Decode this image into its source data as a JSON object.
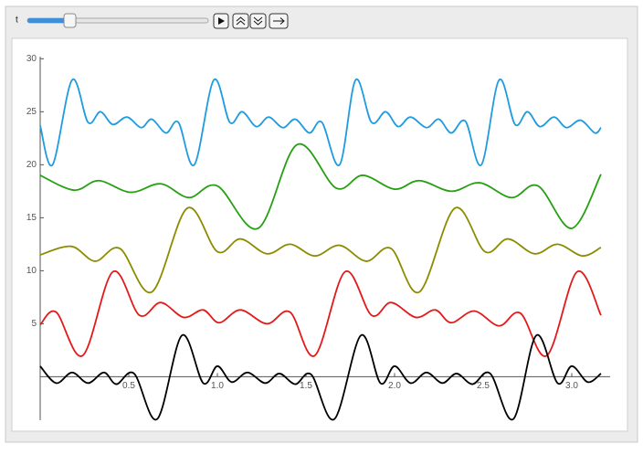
{
  "controls": {
    "label": "t"
  },
  "chart_data": {
    "type": "line",
    "xlim": [
      0,
      3.165
    ],
    "ylim": [
      -4.1,
      30.2
    ],
    "xticks": [
      0.5,
      {
        "value": 1.0,
        "label": "1.0"
      },
      1.5,
      {
        "value": 2.0,
        "label": "2.0"
      },
      2.5,
      {
        "value": 3.0,
        "label": "3.0"
      }
    ],
    "yticks": [
      5,
      10,
      15,
      20,
      25,
      30
    ],
    "series": [
      {
        "color": "#1f9be0",
        "x": [
          0,
          0.07,
          0.18,
          0.27,
          0.34,
          0.41,
          0.49,
          0.57,
          0.63,
          0.71,
          0.78,
          0.87,
          0.98,
          1.07,
          1.14,
          1.22,
          1.29,
          1.37,
          1.44,
          1.52,
          1.59,
          1.69,
          1.78,
          1.87,
          1.95,
          2.02,
          2.09,
          2.18,
          2.25,
          2.32,
          2.4,
          2.49,
          2.59,
          2.68,
          2.75,
          2.82,
          2.9,
          2.97,
          3.05,
          3.13,
          3.165
        ],
        "values": [
          23.7,
          20,
          28,
          24,
          25,
          23.8,
          24.5,
          23.5,
          24.3,
          23,
          24,
          20,
          28,
          24,
          25,
          23.6,
          24.5,
          23.5,
          24.3,
          23,
          24,
          20,
          28,
          24,
          25,
          23.6,
          24.5,
          23.5,
          24.3,
          23,
          24.1,
          20,
          28,
          23.8,
          25,
          23.6,
          24.5,
          23.5,
          24.2,
          23,
          23.5
        ]
      },
      {
        "color": "#26a012",
        "x": [
          0,
          0.19,
          0.33,
          0.51,
          0.68,
          0.84,
          1.0,
          1.23,
          1.45,
          1.67,
          1.82,
          2.0,
          2.14,
          2.32,
          2.48,
          2.66,
          2.81,
          3.0,
          3.165
        ],
        "values": [
          19,
          17.6,
          18.5,
          17.4,
          18.2,
          16.9,
          18,
          14,
          21.9,
          17.8,
          19,
          17.7,
          18.5,
          17.5,
          18.3,
          16.9,
          18,
          14,
          19.1
        ]
      },
      {
        "color": "#8c8c00",
        "x": [
          0,
          0.175,
          0.31,
          0.45,
          0.63,
          0.83,
          1.0,
          1.13,
          1.28,
          1.41,
          1.55,
          1.69,
          1.84,
          1.98,
          2.14,
          2.34,
          2.51,
          2.64,
          2.79,
          2.92,
          3.06,
          3.165
        ],
        "values": [
          11.5,
          12.3,
          10.9,
          12.1,
          8,
          15.9,
          11.8,
          13,
          11.6,
          12.5,
          11.4,
          12.4,
          10.9,
          12.1,
          8,
          15.9,
          11.8,
          13,
          11.6,
          12.5,
          11.4,
          12.2
        ]
      },
      {
        "color": "#e31a1a",
        "x": [
          0,
          0.09,
          0.24,
          0.41,
          0.56,
          0.68,
          0.81,
          0.92,
          1.01,
          1.13,
          1.28,
          1.41,
          1.55,
          1.72,
          1.87,
          1.98,
          2.12,
          2.23,
          2.32,
          2.45,
          2.59,
          2.71,
          2.86,
          3.03,
          3.165
        ],
        "values": [
          4.9,
          6.1,
          2,
          9.9,
          5.8,
          7,
          5.6,
          6.3,
          5.1,
          6.3,
          5,
          6.1,
          2,
          9.9,
          5.8,
          7,
          5.6,
          6.3,
          5.1,
          6.2,
          4.8,
          6,
          2,
          9.9,
          5.8
        ]
      },
      {
        "color": "#000000",
        "x": [
          0,
          0.09,
          0.18,
          0.27,
          0.36,
          0.43,
          0.53,
          0.66,
          0.8,
          0.92,
          1.0,
          1.08,
          1.17,
          1.27,
          1.35,
          1.44,
          1.53,
          1.66,
          1.81,
          1.92,
          2.0,
          2.09,
          2.18,
          2.27,
          2.35,
          2.44,
          2.54,
          2.67,
          2.8,
          2.92,
          3.0,
          3.09,
          3.165
        ],
        "values": [
          1,
          -0.6,
          0.4,
          -0.6,
          0.4,
          -0.7,
          0.3,
          -4,
          3.9,
          -0.6,
          1,
          -0.5,
          0.4,
          -0.6,
          0.3,
          -0.7,
          0.2,
          -4,
          3.9,
          -0.6,
          1,
          -0.6,
          0.4,
          -0.6,
          0.3,
          -0.7,
          0.3,
          -4,
          3.9,
          -0.6,
          1,
          -0.5,
          0.3
        ]
      }
    ]
  }
}
